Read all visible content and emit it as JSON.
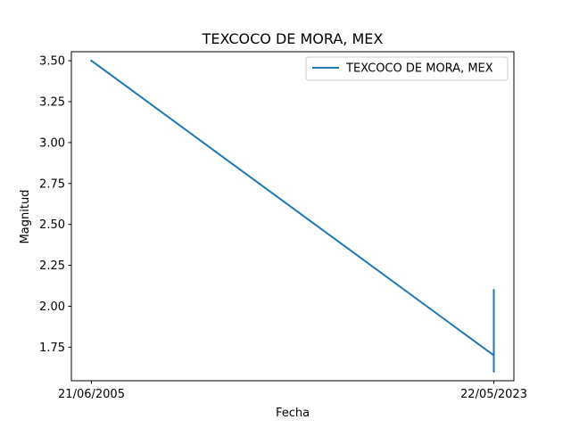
{
  "chart_data": {
    "type": "line",
    "title": "TEXCOCO DE MORA, MEX",
    "xlabel": "Fecha",
    "ylabel": "Magnitud",
    "x_tick_labels": [
      "21/06/2005",
      "22/05/2023"
    ],
    "y_ticks": [
      1.75,
      2.0,
      2.25,
      2.5,
      2.75,
      3.0,
      3.25,
      3.5
    ],
    "y_tick_labels": [
      "1.75",
      "2.00",
      "2.25",
      "2.50",
      "2.75",
      "3.00",
      "3.25",
      "3.50"
    ],
    "ylim": [
      1.545,
      3.555
    ],
    "grid": false,
    "legend_position": "top-right",
    "color": "#1f77b4",
    "series": [
      {
        "name": "TEXCOCO DE MORA, MEX",
        "x": [
          "21/06/2005",
          "22/05/2023",
          "22/05/2023",
          "22/05/2023",
          "22/05/2023",
          "22/05/2023"
        ],
        "values": [
          3.5,
          1.7,
          2.1,
          1.6,
          1.8,
          1.7
        ]
      }
    ]
  }
}
